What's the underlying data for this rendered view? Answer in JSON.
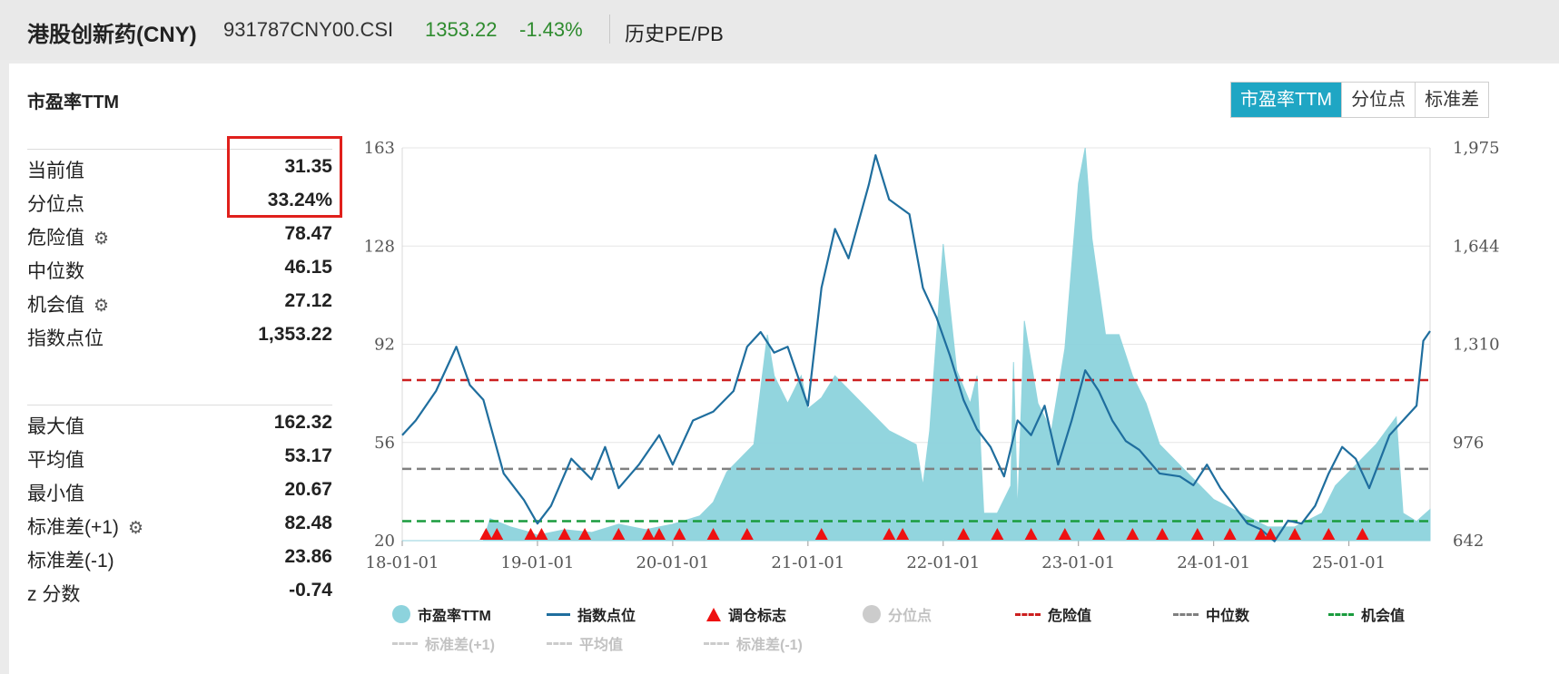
{
  "header": {
    "name": "港股创新药(CNY)",
    "code": "931787CNY00.CSI",
    "price": "1353.22",
    "change": "-1.43%",
    "history_label": "历史PE/PB"
  },
  "panel_title": "市盈率TTM",
  "tabs": [
    "市盈率TTM",
    "分位点",
    "标准差"
  ],
  "stats_top": [
    {
      "label": "当前值",
      "value": "31.35",
      "gear": false
    },
    {
      "label": "分位点",
      "value": "33.24%",
      "gear": false
    },
    {
      "label": "危险值",
      "value": "78.47",
      "gear": true
    },
    {
      "label": "中位数",
      "value": "46.15",
      "gear": false
    },
    {
      "label": "机会值",
      "value": "27.12",
      "gear": true
    },
    {
      "label": "指数点位",
      "value": "1,353.22",
      "gear": false
    }
  ],
  "stats_bottom": [
    {
      "label": "最大值",
      "value": "162.32",
      "gear": false
    },
    {
      "label": "平均值",
      "value": "53.17",
      "gear": false
    },
    {
      "label": "最小值",
      "value": "20.67",
      "gear": false
    },
    {
      "label": "标准差(+1)",
      "value": "82.48",
      "gear": true
    },
    {
      "label": "标准差(-1)",
      "value": "23.86",
      "gear": false
    },
    {
      "label": "z 分数",
      "value": "-0.74",
      "gear": false
    }
  ],
  "colors": {
    "pe_fill": "#8dd3dd",
    "index_line": "#1f6e9e",
    "danger": "#cc1f1f",
    "median": "#808080",
    "opportunity": "#1a9c3e",
    "marker": "#ee1111",
    "accent": "#1fa6c4",
    "up_green": "#2e8b2e"
  },
  "legend": {
    "row1": [
      "市盈率TTM",
      "指数点位",
      "调仓标志",
      "分位点",
      "危险值",
      "中位数",
      "机会值"
    ],
    "row2": [
      "标准差(+1)",
      "平均值",
      "标准差(-1)"
    ]
  },
  "chart_data": {
    "type": "area",
    "x_ticks": [
      "18-01-01",
      "19-01-01",
      "20-01-01",
      "21-01-01",
      "22-01-01",
      "23-01-01",
      "24-01-01",
      "25-01-01"
    ],
    "y_left_ticks": [
      "163",
      "128",
      "92",
      "56",
      "20"
    ],
    "y_right_ticks": [
      "1,975",
      "1,644",
      "1,310",
      "976",
      "642"
    ],
    "ylim_left": [
      20,
      163
    ],
    "ylim_right": [
      642,
      1975
    ],
    "xlim": [
      2018.0,
      2025.6
    ],
    "reference_lines": {
      "danger": 78.47,
      "median": 46.15,
      "opportunity": 27.12
    },
    "grid": true,
    "series": [
      {
        "name": "市盈率TTM",
        "axis": "left",
        "x": [
          2018.0,
          2018.6,
          2018.65,
          2018.8,
          2018.95,
          2019.0,
          2019.2,
          2019.4,
          2019.6,
          2019.8,
          2020.0,
          2020.2,
          2020.3,
          2020.4,
          2020.6,
          2020.7,
          2020.75,
          2020.85,
          2020.95,
          2021.0,
          2021.1,
          2021.2,
          2021.4,
          2021.6,
          2021.8,
          2021.85,
          2021.9,
          2022.0,
          2022.1,
          2022.2,
          2022.25,
          2022.3,
          2022.4,
          2022.5,
          2022.52,
          2022.55,
          2022.6,
          2022.7,
          2022.8,
          2022.9,
          2023.0,
          2023.05,
          2023.1,
          2023.2,
          2023.3,
          2023.4,
          2023.5,
          2023.6,
          2023.8,
          2024.0,
          2024.2,
          2024.4,
          2024.6,
          2024.8,
          2024.9,
          2025.0,
          2025.2,
          2025.35,
          2025.4,
          2025.5,
          2025.6
        ],
        "values": [
          20,
          20,
          28,
          25,
          23,
          22,
          24,
          23,
          26,
          24,
          26,
          29,
          34,
          45,
          55,
          95,
          80,
          70,
          80,
          68,
          72,
          80,
          70,
          60,
          55,
          40,
          60,
          128,
          82,
          70,
          80,
          30,
          30,
          40,
          85,
          30,
          100,
          70,
          60,
          90,
          150,
          163,
          130,
          95,
          95,
          80,
          70,
          55,
          45,
          35,
          30,
          25,
          25,
          30,
          40,
          45,
          55,
          65,
          30,
          27,
          31.35
        ]
      },
      {
        "name": "指数点位",
        "axis": "right",
        "x": [
          2018.0,
          2018.1,
          2018.25,
          2018.4,
          2018.5,
          2018.6,
          2018.75,
          2018.9,
          2019.0,
          2019.1,
          2019.25,
          2019.4,
          2019.5,
          2019.6,
          2019.75,
          2019.9,
          2020.0,
          2020.15,
          2020.3,
          2020.45,
          2020.55,
          2020.65,
          2020.75,
          2020.85,
          2021.0,
          2021.1,
          2021.2,
          2021.3,
          2021.45,
          2021.5,
          2021.6,
          2021.75,
          2021.85,
          2021.95,
          2022.05,
          2022.15,
          2022.25,
          2022.35,
          2022.45,
          2022.55,
          2022.65,
          2022.75,
          2022.85,
          2022.95,
          2023.05,
          2023.15,
          2023.25,
          2023.35,
          2023.45,
          2023.6,
          2023.75,
          2023.85,
          2023.95,
          2024.05,
          2024.15,
          2024.25,
          2024.35,
          2024.45,
          2024.55,
          2024.65,
          2024.75,
          2024.85,
          2024.95,
          2025.05,
          2025.15,
          2025.3,
          2025.4,
          2025.5,
          2025.55,
          2025.6
        ],
        "values": [
          1000,
          1050,
          1150,
          1300,
          1170,
          1120,
          870,
          780,
          700,
          760,
          920,
          850,
          960,
          820,
          900,
          1000,
          900,
          1050,
          1080,
          1150,
          1300,
          1350,
          1280,
          1300,
          1100,
          1500,
          1700,
          1600,
          1850,
          1950,
          1800,
          1750,
          1500,
          1400,
          1270,
          1120,
          1020,
          960,
          860,
          1050,
          1000,
          1100,
          900,
          1050,
          1220,
          1150,
          1050,
          980,
          950,
          870,
          860,
          830,
          900,
          820,
          760,
          700,
          680,
          640,
          710,
          700,
          760,
          870,
          960,
          920,
          820,
          1000,
          1050,
          1100,
          1320,
          1353.22
        ]
      }
    ],
    "rebalance_marker_x": [
      2018.62,
      2018.7,
      2018.95,
      2019.03,
      2019.2,
      2019.35,
      2019.6,
      2019.82,
      2019.9,
      2020.05,
      2020.3,
      2020.55,
      2021.1,
      2021.6,
      2021.7,
      2022.15,
      2022.4,
      2022.65,
      2022.9,
      2023.15,
      2023.4,
      2023.62,
      2023.88,
      2024.12,
      2024.35,
      2024.42,
      2024.6,
      2024.85,
      2025.1
    ]
  }
}
